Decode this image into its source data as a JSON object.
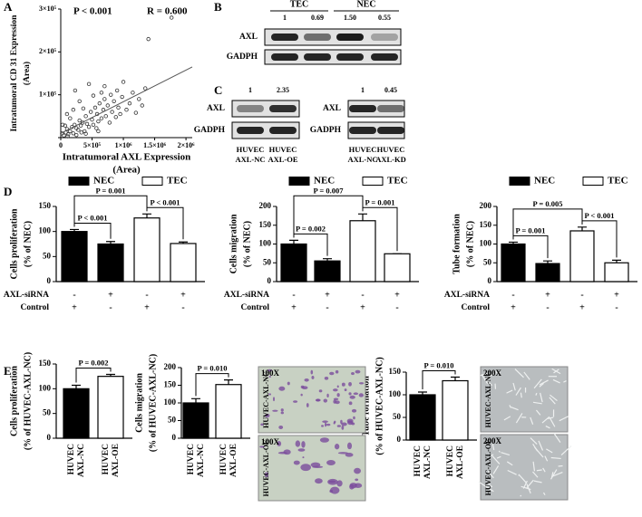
{
  "panels": [
    "A",
    "B",
    "C",
    "D",
    "E"
  ],
  "chart_data": [
    {
      "type": "scatter",
      "annotations": [
        "P < 0.001",
        "R = 0.600"
      ],
      "xlabel": [
        "Intratumoral AXL Expression",
        "(Area)"
      ],
      "ylabel": [
        "Intratumoral CD 31 Expression",
        "(Area)"
      ],
      "x": [
        50000,
        80000,
        100000,
        120000,
        150000,
        180000,
        200000,
        220000,
        250000,
        280000,
        300000,
        320000,
        350000,
        380000,
        400000,
        420000,
        450000,
        480000,
        500000,
        520000,
        550000,
        580000,
        600000,
        620000,
        650000,
        680000,
        700000,
        720000,
        750000,
        780000,
        800000,
        820000,
        850000,
        880000,
        900000,
        920000,
        950000,
        980000,
        1000000,
        1050000,
        1100000,
        1150000,
        1200000,
        1250000,
        1300000,
        1350000,
        1400000,
        1770000,
        100000,
        200000,
        300000,
        30000,
        150000,
        250000,
        400000,
        600000,
        70000,
        360000,
        520000,
        700000,
        230000,
        450000,
        650000,
        20000,
        110000,
        330000,
        570000
      ],
      "y": [
        5000,
        12000,
        20000,
        8000,
        15000,
        25000,
        10000,
        30000,
        22000,
        18000,
        40000,
        28000,
        35000,
        15000,
        50000,
        32000,
        25000,
        60000,
        42000,
        30000,
        70000,
        55000,
        38000,
        80000,
        45000,
        65000,
        90000,
        50000,
        75000,
        35000,
        100000,
        60000,
        85000,
        48000,
        110000,
        70000,
        55000,
        95000,
        130000,
        65000,
        80000,
        105000,
        58000,
        90000,
        75000,
        115000,
        230000,
        280000,
        55000,
        65000,
        85000,
        30000,
        45000,
        6000,
        9000,
        15000,
        28000,
        68000,
        98000,
        120000,
        110000,
        125000,
        105000,
        10000,
        3000,
        12000,
        22000
      ],
      "xlim": [
        0,
        2100000
      ],
      "ylim": [
        0,
        300000
      ],
      "xticks": [
        0,
        {
          "value": 500000,
          "label": "5×10⁵"
        },
        {
          "value": 1000000,
          "label": "1×10⁶"
        },
        {
          "value": 1500000,
          "label": "1.5×10⁶"
        },
        {
          "value": 2000000,
          "label": "2×10⁶"
        }
      ],
      "yticks": [
        0,
        {
          "value": 100000,
          "label": "1×10⁵"
        },
        {
          "value": 200000,
          "label": "2×10⁵"
        },
        {
          "value": 300000,
          "label": "3×10⁵"
        }
      ],
      "trendline": {
        "x": [
          0,
          2100000
        ],
        "y": [
          10000,
          165000
        ]
      },
      "marker_color": "#333333"
    },
    {
      "type": "bar",
      "ylabel": [
        "Cells proliferation",
        "(% of  NEC)"
      ],
      "ylim": [
        0,
        150
      ],
      "yticks": [
        0,
        50,
        100,
        150
      ],
      "series": [
        {
          "name": "NEC",
          "color": "#000000",
          "values": [
            100,
            75,
            null,
            null
          ],
          "errors": [
            4,
            5,
            null,
            null
          ]
        },
        {
          "name": "TEC",
          "color": "#ffffff",
          "values": [
            null,
            null,
            127,
            76
          ],
          "errors": [
            null,
            null,
            8,
            3
          ]
        }
      ],
      "conditions": [
        {
          "name": "AXL-siRNA",
          "values": [
            "-",
            "+",
            "-",
            "+"
          ]
        },
        {
          "name": "Control",
          "values": [
            "+",
            "-",
            "+",
            "-"
          ]
        }
      ],
      "annotations": [
        {
          "text": "P = 0.001",
          "from": 0,
          "to": 2
        },
        {
          "text": "P < 0.001",
          "from": 0,
          "to": 1
        },
        {
          "text": "P < 0.001",
          "from": 2,
          "to": 3
        }
      ]
    },
    {
      "type": "bar",
      "ylabel": [
        "Cells migration",
        "(% of  NEC)"
      ],
      "ylim": [
        0,
        200
      ],
      "yticks": [
        0,
        50,
        100,
        150,
        200
      ],
      "series": [
        {
          "name": "NEC",
          "color": "#000000",
          "values": [
            100,
            55,
            null,
            null
          ],
          "errors": [
            10,
            6,
            null,
            null
          ]
        },
        {
          "name": "TEC",
          "color": "#ffffff",
          "values": [
            null,
            null,
            162,
            74
          ],
          "errors": [
            null,
            null,
            18,
            0
          ]
        }
      ],
      "conditions": [
        {
          "name": "AXL-siRNA",
          "values": [
            "-",
            "+",
            "-",
            "+"
          ]
        },
        {
          "name": "Control",
          "values": [
            "+",
            "-",
            "+",
            "-"
          ]
        }
      ],
      "annotations": [
        {
          "text": "P = 0.007",
          "from": 0,
          "to": 2
        },
        {
          "text": "P = 0.002",
          "from": 0,
          "to": 1
        },
        {
          "text": "P = 0.001",
          "from": 2,
          "to": 3
        }
      ]
    },
    {
      "type": "bar",
      "ylabel": [
        "Tube formation",
        "(% of  NEC)"
      ],
      "ylim": [
        0,
        200
      ],
      "yticks": [
        0,
        50,
        100,
        150,
        200
      ],
      "series": [
        {
          "name": "NEC",
          "color": "#000000",
          "values": [
            100,
            48,
            null,
            null
          ],
          "errors": [
            5,
            7,
            null,
            null
          ]
        },
        {
          "name": "TEC",
          "color": "#ffffff",
          "values": [
            null,
            null,
            135,
            50
          ],
          "errors": [
            null,
            null,
            10,
            7
          ]
        }
      ],
      "conditions": [
        {
          "name": "AXL-siRNA",
          "values": [
            "-",
            "+",
            "-",
            "+"
          ]
        },
        {
          "name": "Control",
          "values": [
            "+",
            "-",
            "+",
            "-"
          ]
        }
      ],
      "annotations": [
        {
          "text": "P = 0.005",
          "from": 0,
          "to": 2
        },
        {
          "text": "P = 0.001",
          "from": 0,
          "to": 1
        },
        {
          "text": "P < 0.001",
          "from": 2,
          "to": 3
        }
      ]
    },
    {
      "type": "bar",
      "ylabel": [
        "Cells proliferation",
        "(% of HUVEC-AXL-NC)"
      ],
      "ylim": [
        0,
        150
      ],
      "yticks": [
        0,
        50,
        100,
        150
      ],
      "categories": [
        [
          "HUVEC",
          "AXL-NC"
        ],
        [
          "HUVEC",
          "AXL-OE"
        ]
      ],
      "values": [
        100,
        125
      ],
      "errors": [
        7,
        4
      ],
      "colors": [
        "#000000",
        "#ffffff"
      ],
      "annotations": [
        {
          "text": "P = 0.002",
          "from": 0,
          "to": 1
        }
      ]
    },
    {
      "type": "bar",
      "ylabel": [
        "Cells migration",
        "(% of HUVEC-AXL-NC)"
      ],
      "ylim": [
        0,
        200
      ],
      "yticks": [
        0,
        50,
        100,
        150,
        200
      ],
      "categories": [
        [
          "HUVEC",
          "AXL-NC"
        ],
        [
          "HUVEC",
          "AXL-OE"
        ]
      ],
      "values": [
        100,
        152
      ],
      "errors": [
        12,
        13
      ],
      "colors": [
        "#000000",
        "#ffffff"
      ],
      "annotations": [
        {
          "text": "P = 0.010",
          "from": 0,
          "to": 1
        }
      ]
    },
    {
      "type": "bar",
      "ylabel": [
        "Tube formation",
        "(% of HUVEC-AXL-NC)"
      ],
      "ylim": [
        0,
        150
      ],
      "yticks": [
        0,
        50,
        100,
        150
      ],
      "categories": [
        [
          "HUVEC",
          "AXL-NC"
        ],
        [
          "HUVEC",
          "AXL-OE"
        ]
      ],
      "values": [
        100,
        131
      ],
      "errors": [
        6,
        8
      ],
      "colors": [
        "#000000",
        "#ffffff"
      ],
      "annotations": [
        {
          "text": "P = 0.010",
          "from": 0,
          "to": 1
        }
      ]
    }
  ],
  "blots": [
    {
      "groups": [
        "TEC",
        "NEC"
      ],
      "ratios": [
        "1",
        "0.69",
        "1.50",
        "0.55"
      ],
      "rows": [
        "AXL",
        "GADPH"
      ]
    },
    {
      "ratios": [
        "1",
        "2.35"
      ],
      "rows": [
        "AXL",
        "GADPH"
      ],
      "lanes": [
        [
          "HUVEC",
          "AXL-NC"
        ],
        [
          "HUVEC",
          "AXL-OE"
        ]
      ]
    },
    {
      "ratios": [
        "1",
        "0.45"
      ],
      "rows": [
        "AXL",
        "GADPH"
      ],
      "lanes": [
        [
          "HUVEC",
          "AXL-NC"
        ],
        [
          "HUVEC",
          "AXL-KD"
        ]
      ]
    }
  ],
  "micrographs": [
    {
      "magnification": "100X",
      "label": "HUVEC-AXL-NC"
    },
    {
      "magnification": "100X",
      "label": "HUVEC-AXL-OE"
    },
    {
      "magnification": "200X",
      "label": "HUVEC-AXL-NC"
    },
    {
      "magnification": "200X",
      "label": "HUVEC-AXL-OE"
    }
  ]
}
